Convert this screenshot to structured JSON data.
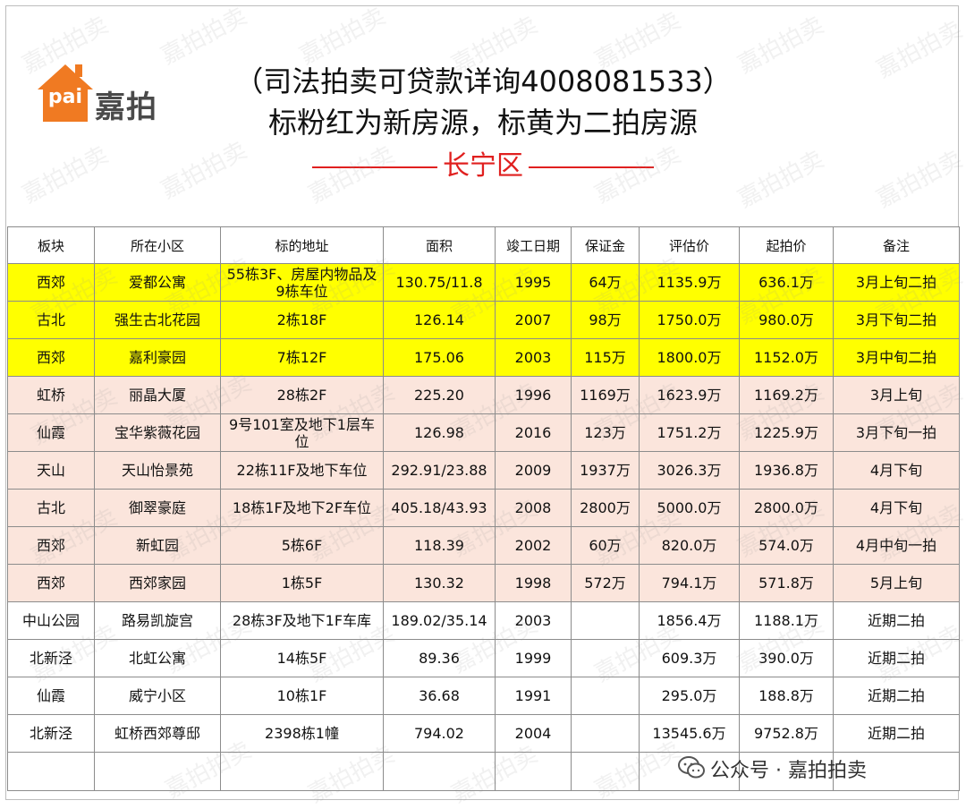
{
  "logo": {
    "pai": "pai",
    "name": "嘉拍"
  },
  "header": {
    "line1": "（司法拍卖可贷款详询4008081533）",
    "line2": "标粉红为新房源，标黄为二拍房源",
    "district": "长宁区"
  },
  "watermark": "嘉拍拍卖",
  "colors": {
    "second_auction": "#ffff00",
    "new_listing": "#fbe5dc",
    "accent": "#e0201f",
    "logo_orange": "#f07a22"
  },
  "table": {
    "headers": [
      "板块",
      "所在小区",
      "标的地址",
      "面积",
      "竣工日期",
      "保证金",
      "评估价",
      "起拍价",
      "备注"
    ],
    "rows": [
      {
        "style": "yellow",
        "cells": [
          "西郊",
          "爱都公寓",
          "55栋3F、房屋内物品及9栋车位",
          "130.75/11.8",
          "1995",
          "64万",
          "1135.9万",
          "636.1万",
          "3月上旬二拍"
        ]
      },
      {
        "style": "yellow",
        "cells": [
          "古北",
          "强生古北花园",
          "2栋18F",
          "126.14",
          "2007",
          "98万",
          "1750.0万",
          "980.0万",
          "3月下旬二拍"
        ]
      },
      {
        "style": "yellow",
        "cells": [
          "西郊",
          "嘉利豪园",
          "7栋12F",
          "175.06",
          "2003",
          "115万",
          "1800.0万",
          "1152.0万",
          "3月中旬二拍"
        ]
      },
      {
        "style": "pink",
        "cells": [
          "虹桥",
          "丽晶大厦",
          "28栋2F",
          "225.20",
          "1996",
          "1169万",
          "1623.9万",
          "1169.2万",
          "3月上旬"
        ]
      },
      {
        "style": "pink",
        "cells": [
          "仙霞",
          "宝华紫薇花园",
          "9号101室及地下1层车位",
          "126.98",
          "2016",
          "123万",
          "1751.2万",
          "1225.9万",
          "3月下旬一拍"
        ]
      },
      {
        "style": "pink",
        "cells": [
          "天山",
          "天山怡景苑",
          "22栋11F及地下车位",
          "292.91/23.88",
          "2009",
          "1937万",
          "3026.3万",
          "1936.8万",
          "4月下旬"
        ]
      },
      {
        "style": "pink",
        "cells": [
          "古北",
          "御翠豪庭",
          "18栋1F及地下2F车位",
          "405.18/43.93",
          "2008",
          "2800万",
          "5000.0万",
          "2800.0万",
          "4月下旬"
        ]
      },
      {
        "style": "pink",
        "cells": [
          "西郊",
          "新虹园",
          "5栋6F",
          "118.39",
          "2002",
          "60万",
          "820.0万",
          "574.0万",
          "4月中旬一拍"
        ]
      },
      {
        "style": "pink",
        "cells": [
          "西郊",
          "西郊家园",
          "1栋5F",
          "130.32",
          "1998",
          "572万",
          "794.1万",
          "571.8万",
          "5月上旬"
        ]
      },
      {
        "style": "white",
        "cells": [
          "中山公园",
          "路易凯旋宫",
          "28栋3F及地下1F车库",
          "189.02/35.14",
          "2003",
          "",
          "1856.4万",
          "1188.1万",
          "近期二拍"
        ]
      },
      {
        "style": "white",
        "cells": [
          "北新泾",
          "北虹公寓",
          "14栋5F",
          "89.36",
          "1999",
          "",
          "609.3万",
          "390.0万",
          "近期二拍"
        ]
      },
      {
        "style": "white",
        "cells": [
          "仙霞",
          "威宁小区",
          "10栋1F",
          "36.68",
          "1991",
          "",
          "295.0万",
          "188.8万",
          "近期二拍"
        ]
      },
      {
        "style": "white",
        "cells": [
          "北新泾",
          "虹桥西郊尊邸",
          "2398栋1幢",
          "794.02",
          "2004",
          "",
          "13545.6万",
          "9752.8万",
          "近期二拍"
        ]
      }
    ]
  },
  "footer": {
    "wechat_label": "公众号 · 嘉拍拍卖",
    "icon": "wechat-icon"
  }
}
